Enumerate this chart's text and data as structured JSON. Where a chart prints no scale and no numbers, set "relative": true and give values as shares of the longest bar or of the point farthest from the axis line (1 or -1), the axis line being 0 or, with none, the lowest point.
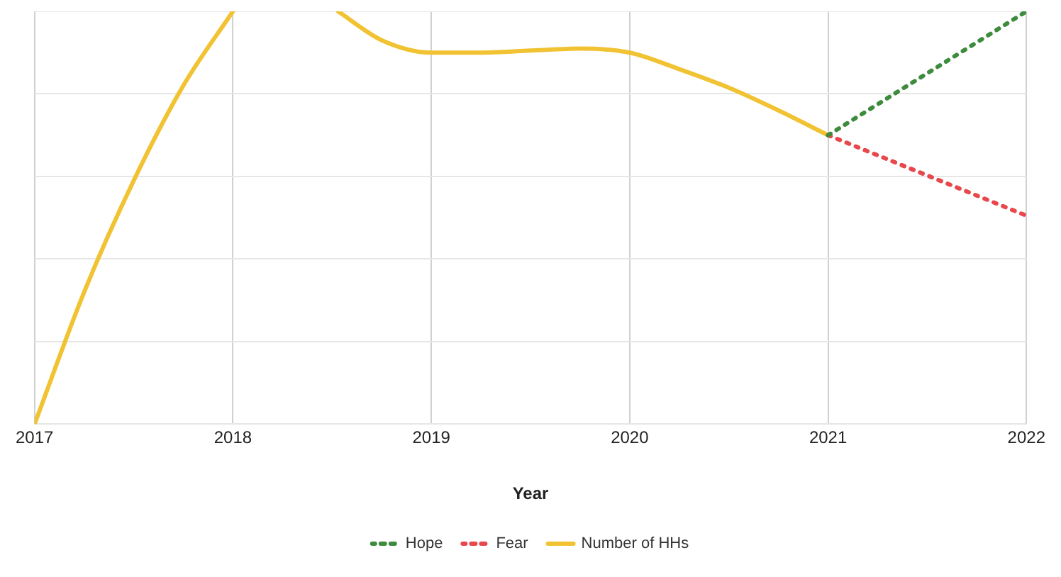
{
  "chart_data": {
    "type": "line",
    "relative": true,
    "xlabel": "Year",
    "xlim": [
      2017,
      2022
    ],
    "xticks": [
      2017,
      2018,
      2019,
      2020,
      2021,
      2022
    ],
    "grid": true,
    "legend": "bottom",
    "series": [
      {
        "name": "Hope",
        "color": "#3d8b3d",
        "line_style": "dotted",
        "x": [
          2021,
          2022
        ],
        "values": [
          0.7,
          1.0
        ]
      },
      {
        "name": "Fear",
        "color": "#e8474c",
        "line_style": "dotted",
        "x": [
          2021,
          2022
        ],
        "values": [
          0.7,
          0.505
        ]
      },
      {
        "name": "Number of HHs",
        "color": "#f1c232",
        "line_style": "solid",
        "x": [
          2017,
          2017.25,
          2017.5,
          2017.75,
          2018,
          2018.25,
          2018.53,
          2018.75,
          2019,
          2019.25,
          2019.5,
          2019.75,
          2020,
          2020.25,
          2020.5,
          2020.75,
          2021
        ],
        "values": [
          0,
          0.32,
          0.59,
          0.82,
          1.0,
          null,
          1.0,
          0.93,
          0.9,
          0.9,
          0.905,
          0.91,
          0.9,
          0.86,
          0.815,
          0.76,
          0.7
        ]
      }
    ]
  }
}
